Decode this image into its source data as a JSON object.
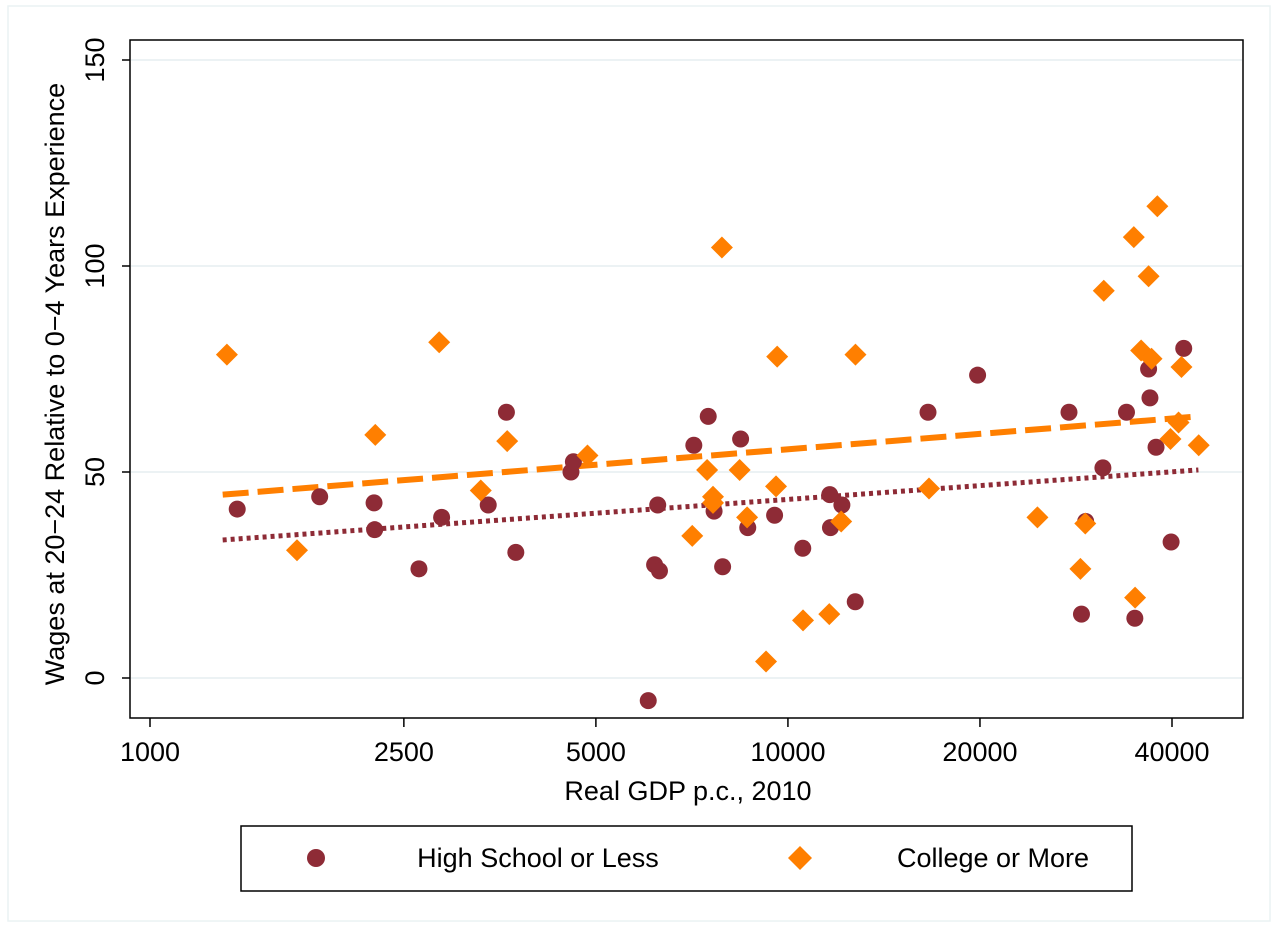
{
  "chart_data": {
    "type": "scatter",
    "title": "",
    "xlabel": "Real GDP p.c., 2010",
    "ylabel": "Wages at 20−24 Relative to 0−4 Years Experience",
    "x_scale": "log",
    "xlim": [
      1000,
      60000
    ],
    "ylim": [
      -12,
      160
    ],
    "x_ticks": [
      1000,
      2500,
      5000,
      10000,
      20000,
      40000
    ],
    "x_tick_labels": [
      "1000",
      "2500",
      "5000",
      "10000",
      "20000",
      "40000"
    ],
    "y_ticks": [
      0,
      50,
      100,
      150
    ],
    "y_tick_labels": [
      "0",
      "50",
      "100",
      "150"
    ],
    "grid": "horizontal",
    "legend_position": "bottom",
    "series": [
      {
        "name": "High School or Less",
        "marker": "circle",
        "color": "#8e2b36",
        "points": [
          [
            1370,
            41
          ],
          [
            1845,
            44
          ],
          [
            2245,
            42.5
          ],
          [
            2250,
            36
          ],
          [
            2640,
            26.5
          ],
          [
            2865,
            39
          ],
          [
            3390,
            42
          ],
          [
            3620,
            64.5
          ],
          [
            3745,
            30.5
          ],
          [
            4570,
            50
          ],
          [
            4610,
            52.5
          ],
          [
            6040,
            -5.5
          ],
          [
            6180,
            27.5
          ],
          [
            6250,
            42
          ],
          [
            6290,
            26
          ],
          [
            7120,
            56.5
          ],
          [
            7500,
            63.5
          ],
          [
            7660,
            40.5
          ],
          [
            7900,
            27
          ],
          [
            8430,
            58
          ],
          [
            8650,
            36.5
          ],
          [
            9530,
            39.5
          ],
          [
            10550,
            31.5
          ],
          [
            11630,
            44.5
          ],
          [
            11660,
            36.5
          ],
          [
            12150,
            42
          ],
          [
            12750,
            18.5
          ],
          [
            16580,
            64.5
          ],
          [
            19830,
            73.5
          ],
          [
            27580,
            64.5
          ],
          [
            29290,
            38
          ],
          [
            28850,
            15.5
          ],
          [
            31170,
            51
          ],
          [
            33940,
            64.5
          ],
          [
            34980,
            14.5
          ],
          [
            36760,
            75
          ],
          [
            36940,
            68
          ],
          [
            37760,
            56
          ],
          [
            39870,
            33
          ],
          [
            41730,
            80
          ]
        ]
      },
      {
        "name": "College or More",
        "marker": "diamond",
        "color": "#ff7f00",
        "points": [
          [
            1320,
            78.5
          ],
          [
            1700,
            31
          ],
          [
            2255,
            59
          ],
          [
            2840,
            81.5
          ],
          [
            3300,
            45.5
          ],
          [
            3630,
            57.5
          ],
          [
            4850,
            54
          ],
          [
            7080,
            34.5
          ],
          [
            7470,
            50.5
          ],
          [
            7630,
            44
          ],
          [
            7630,
            42.5
          ],
          [
            7880,
            104.5
          ],
          [
            8400,
            50.5
          ],
          [
            8630,
            39
          ],
          [
            9240,
            4
          ],
          [
            9620,
            78
          ],
          [
            9580,
            46.5
          ],
          [
            10560,
            14
          ],
          [
            11610,
            15.5
          ],
          [
            12120,
            38
          ],
          [
            12760,
            78.5
          ],
          [
            16640,
            46
          ],
          [
            24610,
            39
          ],
          [
            28740,
            26.5
          ],
          [
            29250,
            37.5
          ],
          [
            31270,
            94
          ],
          [
            34850,
            107
          ],
          [
            35010,
            19.5
          ],
          [
            35780,
            79.5
          ],
          [
            36760,
            97.5
          ],
          [
            37150,
            77.5
          ],
          [
            37940,
            114.5
          ],
          [
            39780,
            58
          ],
          [
            40960,
            62
          ],
          [
            41390,
            75.5
          ],
          [
            44050,
            56.5
          ]
        ]
      }
    ],
    "fit_lines": [
      {
        "series": "High School or Less",
        "style": "dotted",
        "color": "#8e2b36",
        "x": [
          1300,
          44000
        ],
        "y": [
          33.5,
          50.5
        ]
      },
      {
        "series": "College or More",
        "style": "dashed",
        "color": "#ff7f00",
        "x": [
          1300,
          44000
        ],
        "y": [
          44.5,
          63.5
        ]
      }
    ]
  }
}
